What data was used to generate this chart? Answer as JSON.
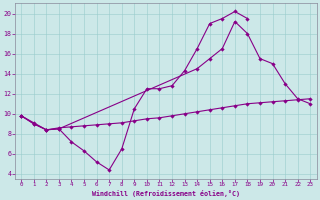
{
  "xlabel": "Windchill (Refroidissement éolien,°C)",
  "bg_color": "#cce8e8",
  "line_color": "#880088",
  "xlim": [
    -0.5,
    23.5
  ],
  "ylim": [
    3.5,
    21.0
  ],
  "xticks": [
    0,
    1,
    2,
    3,
    4,
    5,
    6,
    7,
    8,
    9,
    10,
    11,
    12,
    13,
    14,
    15,
    16,
    17,
    18,
    19,
    20,
    21,
    22,
    23
  ],
  "yticks": [
    4,
    6,
    8,
    10,
    12,
    14,
    16,
    18,
    20
  ],
  "line1_x": [
    0,
    1,
    2,
    3,
    4,
    5,
    6,
    7,
    8,
    9,
    10,
    11,
    12,
    13,
    14,
    15,
    16,
    17,
    18
  ],
  "line1_y": [
    9.8,
    9.1,
    8.4,
    8.5,
    7.2,
    6.3,
    5.2,
    4.4,
    6.5,
    10.5,
    12.5,
    12.5,
    12.8,
    14.3,
    16.5,
    19.0,
    19.5,
    20.2,
    19.5
  ],
  "line2_x": [
    0,
    1,
    2,
    3,
    14,
    15,
    16,
    17,
    18,
    19,
    20,
    21,
    22,
    23
  ],
  "line2_y": [
    9.8,
    9.0,
    8.4,
    8.5,
    14.5,
    15.5,
    16.5,
    19.2,
    18.0,
    15.5,
    15.0,
    13.0,
    11.5,
    11.0
  ],
  "line3_x": [
    0,
    1,
    2,
    3,
    4,
    5,
    6,
    7,
    8,
    9,
    10,
    11,
    12,
    13,
    14,
    15,
    16,
    17,
    18,
    19,
    20,
    21,
    22,
    23
  ],
  "line3_y": [
    9.8,
    9.0,
    8.4,
    8.6,
    8.7,
    8.8,
    8.9,
    9.0,
    9.1,
    9.3,
    9.5,
    9.6,
    9.8,
    10.0,
    10.2,
    10.4,
    10.6,
    10.8,
    11.0,
    11.1,
    11.2,
    11.3,
    11.4,
    11.5
  ]
}
